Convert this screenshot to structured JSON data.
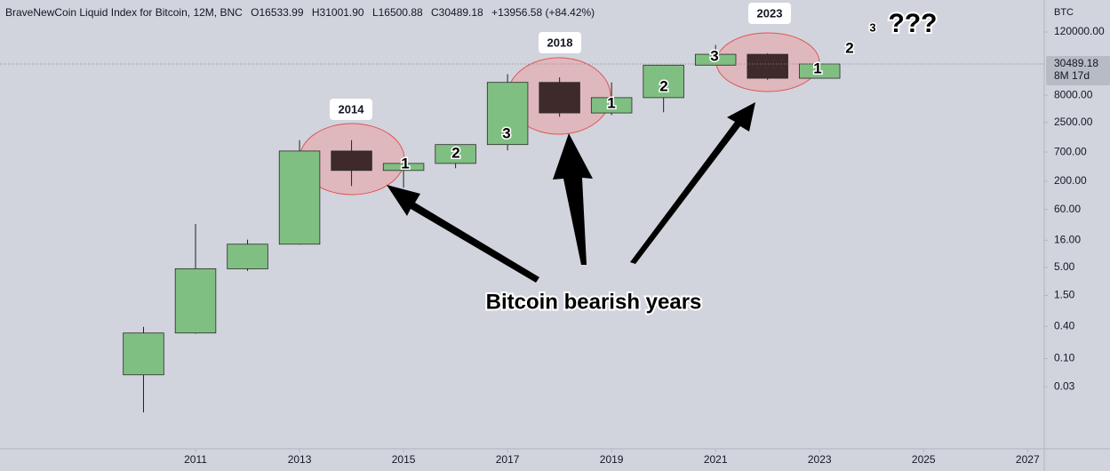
{
  "chart_data": {
    "type": "candlestick",
    "legend_text": [
      "BraveNewCoin Liquid Index for Bitcoin, 12M, BNC",
      "O16533.99",
      "H31001.90",
      "L16500.88",
      "C30489.18",
      "+13956.58 (+84.42%)"
    ],
    "y_unit": "BTC",
    "x": [
      2010,
      2011,
      2012,
      2013,
      2014,
      2015,
      2016,
      2017,
      2018,
      2019,
      2020,
      2021,
      2022,
      2023
    ],
    "open": [
      0.05,
      0.3,
      4.7,
      13.5,
      732,
      318,
      430,
      964,
      13850,
      3740,
      7200,
      28990,
      46200,
      16533.99
    ],
    "high": [
      0.39,
      32,
      16.4,
      1163,
      1165,
      495,
      980,
      19666,
      17180,
      13880,
      29300,
      69000,
      48200,
      31001.9
    ],
    "low": [
      0.01,
      0.29,
      4.3,
      13.2,
      163,
      152,
      350,
      752,
      3180,
      3400,
      3850,
      28800,
      15480,
      16500.88
    ],
    "close": [
      0.3,
      4.72,
      13.5,
      732,
      318,
      430,
      964,
      13850,
      3740,
      7200,
      28990,
      46200,
      16530,
      30489.18
    ],
    "last_price_label": "30489.18",
    "countdown": "8M 17d",
    "up_color": "#80bf82",
    "down_color": "#3e2a2a",
    "log_scale": true,
    "grid": false,
    "xlim": [
      2007.24,
      2027.32
    ],
    "xticks": [
      2011,
      2013,
      2015,
      2017,
      2019,
      2021,
      2023,
      2025,
      2027
    ],
    "ylim": [
      0.0021,
      473000
    ],
    "yticks": [
      {
        "value": 120000,
        "label": "120000.00"
      },
      {
        "value": 8000,
        "label": "8000.00"
      },
      {
        "value": 2500,
        "label": "2500.00"
      },
      {
        "value": 700,
        "label": "700.00"
      },
      {
        "value": 200,
        "label": "200.00"
      },
      {
        "value": 60,
        "label": "60.00"
      },
      {
        "value": 16,
        "label": "16.00"
      },
      {
        "value": 5,
        "label": "5.00"
      },
      {
        "value": 1.5,
        "label": "1.50"
      },
      {
        "value": 0.4,
        "label": "0.40"
      },
      {
        "value": 0.1,
        "label": "0.10"
      },
      {
        "value": 0.03,
        "label": "0.03"
      }
    ],
    "annotations": [
      "2014",
      "2018",
      "2023",
      "1",
      "2",
      "3",
      "1",
      "2",
      "3",
      "1",
      "2",
      "3",
      "???",
      "Bitcoin bearish years"
    ]
  }
}
